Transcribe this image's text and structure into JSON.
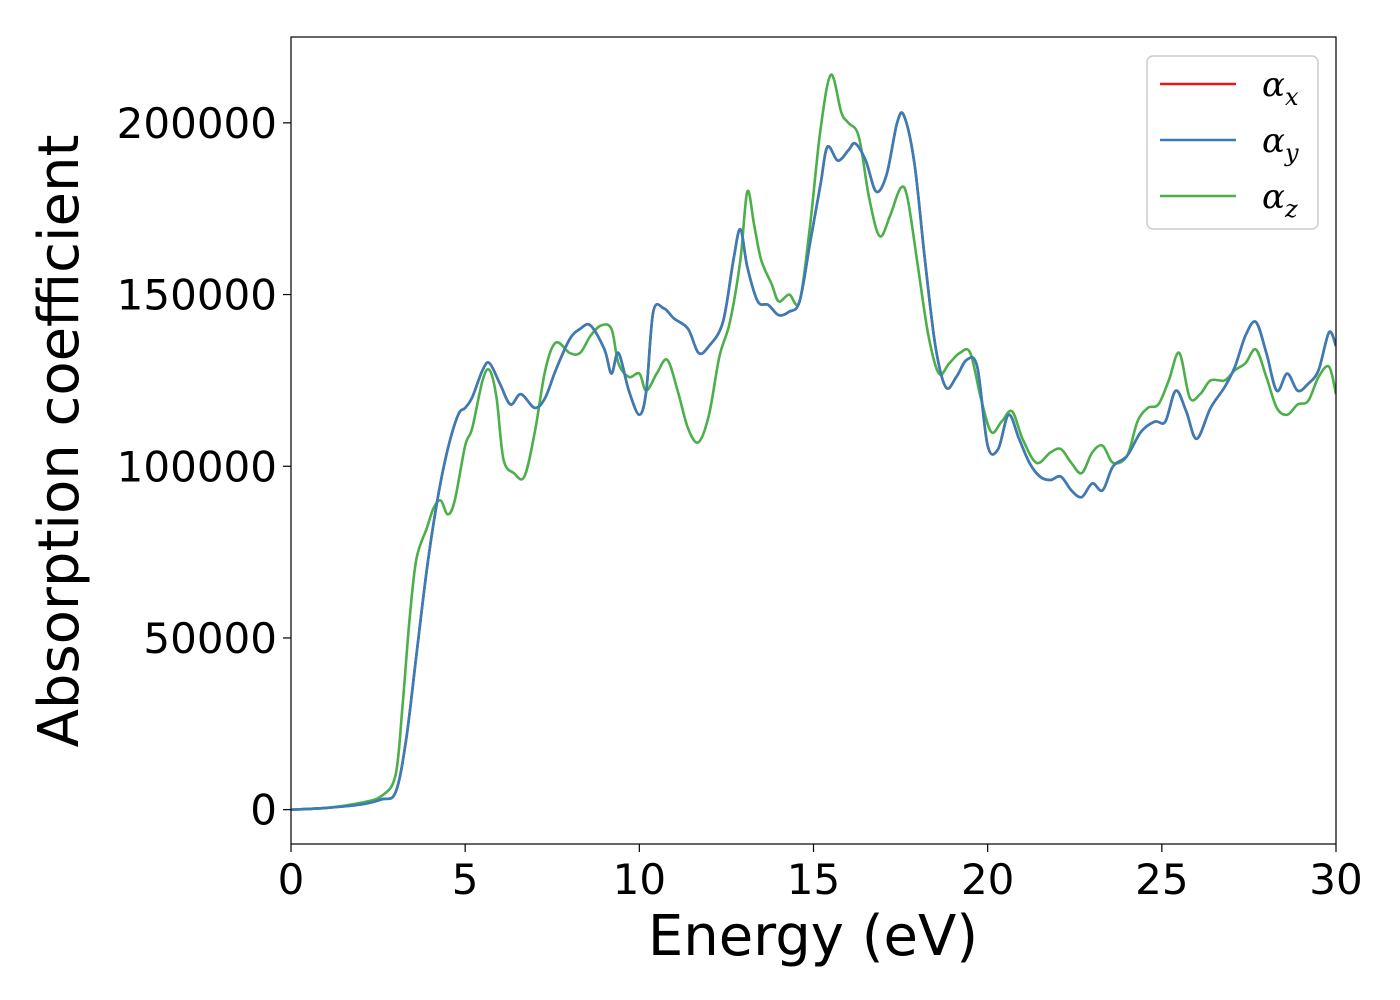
{
  "chart_data": {
    "type": "line",
    "xlabel": "Energy (eV)",
    "ylabel": "Absorption coefficient",
    "xlim": [
      0,
      30
    ],
    "ylim": [
      -10000,
      225000
    ],
    "xticks": [
      0,
      5,
      10,
      15,
      20,
      25,
      30
    ],
    "xtick_labels": [
      "0",
      "5",
      "10",
      "15",
      "20",
      "25",
      "30"
    ],
    "yticks": [
      0,
      50000,
      100000,
      150000,
      200000
    ],
    "ytick_labels": [
      "0",
      "50000",
      "100000",
      "150000",
      "200000"
    ],
    "grid": false,
    "legend_position": "top-right",
    "series": [
      {
        "name": "αx",
        "base": "α",
        "sub": "x",
        "color": "#e41a1c",
        "x": [
          0,
          1,
          2,
          2.6,
          3.0,
          3.3,
          3.6,
          3.9,
          4.2,
          4.5,
          4.8,
          5.0,
          5.2,
          5.5,
          5.7,
          6.0,
          6.3,
          6.6,
          7.0,
          7.3,
          7.6,
          8.0,
          8.3,
          8.6,
          9.0,
          9.2,
          9.4,
          9.7,
          10.0,
          10.2,
          10.4,
          10.7,
          11.0,
          11.4,
          11.7,
          12.0,
          12.4,
          12.7,
          12.9,
          13.1,
          13.4,
          13.7,
          14.0,
          14.3,
          14.6,
          14.9,
          15.2,
          15.4,
          15.7,
          16.0,
          16.2,
          16.5,
          16.8,
          17.1,
          17.4,
          17.6,
          17.9,
          18.2,
          18.5,
          18.8,
          19.1,
          19.4,
          19.7,
          20.0,
          20.3,
          20.6,
          20.9,
          21.2,
          21.5,
          21.8,
          22.1,
          22.4,
          22.7,
          23.0,
          23.3,
          23.6,
          24.0,
          24.4,
          24.8,
          25.1,
          25.4,
          25.7,
          26.0,
          26.4,
          26.8,
          27.1,
          27.4,
          27.7,
          28.0,
          28.3,
          28.6,
          28.9,
          29.2,
          29.5,
          29.8,
          30.0
        ],
        "y": [
          0,
          500,
          1500,
          3000,
          5000,
          20000,
          45000,
          70000,
          90000,
          105000,
          115000,
          117000,
          120000,
          128000,
          130000,
          124000,
          118000,
          121000,
          117000,
          120000,
          128000,
          137000,
          140000,
          141000,
          134000,
          127000,
          133000,
          122000,
          115000,
          122000,
          145000,
          146000,
          143000,
          140000,
          133000,
          135000,
          142000,
          160000,
          169000,
          158000,
          148000,
          147000,
          144000,
          145000,
          148000,
          165000,
          182000,
          193000,
          189000,
          192000,
          194000,
          189000,
          180000,
          185000,
          200000,
          202000,
          188000,
          160000,
          135000,
          123000,
          126000,
          131000,
          129000,
          106000,
          105000,
          115000,
          108000,
          101000,
          97000,
          96000,
          97000,
          93000,
          91000,
          95000,
          93000,
          100000,
          103000,
          110000,
          113000,
          113000,
          122000,
          116000,
          108000,
          117000,
          123000,
          129000,
          138000,
          142000,
          133000,
          122000,
          127000,
          122000,
          124000,
          128000,
          139000,
          135000
        ]
      },
      {
        "name": "αy",
        "base": "α",
        "sub": "y",
        "color": "#377eb8",
        "x": [
          0,
          1,
          2,
          2.6,
          3.0,
          3.3,
          3.6,
          3.9,
          4.2,
          4.5,
          4.8,
          5.0,
          5.2,
          5.5,
          5.7,
          6.0,
          6.3,
          6.6,
          7.0,
          7.3,
          7.6,
          8.0,
          8.3,
          8.6,
          9.0,
          9.2,
          9.4,
          9.7,
          10.0,
          10.2,
          10.4,
          10.7,
          11.0,
          11.4,
          11.7,
          12.0,
          12.4,
          12.7,
          12.9,
          13.1,
          13.4,
          13.7,
          14.0,
          14.3,
          14.6,
          14.9,
          15.2,
          15.4,
          15.7,
          16.0,
          16.2,
          16.5,
          16.8,
          17.1,
          17.4,
          17.6,
          17.9,
          18.2,
          18.5,
          18.8,
          19.1,
          19.4,
          19.7,
          20.0,
          20.3,
          20.6,
          20.9,
          21.2,
          21.5,
          21.8,
          22.1,
          22.4,
          22.7,
          23.0,
          23.3,
          23.6,
          24.0,
          24.4,
          24.8,
          25.1,
          25.4,
          25.7,
          26.0,
          26.4,
          26.8,
          27.1,
          27.4,
          27.7,
          28.0,
          28.3,
          28.6,
          28.9,
          29.2,
          29.5,
          29.8,
          30.0
        ],
        "y": [
          0,
          500,
          1500,
          3000,
          5000,
          20000,
          45000,
          70000,
          90000,
          105000,
          115000,
          117000,
          120000,
          128000,
          130000,
          124000,
          118000,
          121000,
          117000,
          120000,
          128000,
          137000,
          140000,
          141000,
          134000,
          127000,
          133000,
          122000,
          115000,
          122000,
          145000,
          146000,
          143000,
          140000,
          133000,
          135000,
          142000,
          160000,
          169000,
          158000,
          148000,
          147000,
          144000,
          145000,
          148000,
          165000,
          182000,
          193000,
          189000,
          192000,
          194000,
          189000,
          180000,
          185000,
          200000,
          202000,
          188000,
          160000,
          135000,
          123000,
          126000,
          131000,
          129000,
          106000,
          105000,
          115000,
          108000,
          101000,
          97000,
          96000,
          97000,
          93000,
          91000,
          95000,
          93000,
          100000,
          103000,
          110000,
          113000,
          113000,
          122000,
          116000,
          108000,
          117000,
          123000,
          129000,
          138000,
          142000,
          133000,
          122000,
          127000,
          122000,
          124000,
          128000,
          139000,
          135000
        ]
      },
      {
        "name": "αz",
        "base": "α",
        "sub": "z",
        "color": "#4daf4a",
        "x": [
          0,
          1,
          2,
          2.6,
          3.0,
          3.2,
          3.4,
          3.6,
          3.9,
          4.1,
          4.3,
          4.5,
          4.7,
          5.0,
          5.2,
          5.5,
          5.7,
          5.9,
          6.1,
          6.4,
          6.7,
          7.0,
          7.3,
          7.6,
          8.0,
          8.3,
          8.6,
          8.9,
          9.2,
          9.4,
          9.7,
          10.0,
          10.2,
          10.5,
          10.8,
          11.1,
          11.4,
          11.7,
          12.0,
          12.3,
          12.6,
          12.9,
          13.1,
          13.3,
          13.5,
          13.8,
          14.0,
          14.3,
          14.6,
          14.9,
          15.2,
          15.5,
          15.8,
          16.0,
          16.3,
          16.6,
          16.9,
          17.2,
          17.5,
          17.7,
          18.0,
          18.3,
          18.6,
          18.9,
          19.2,
          19.5,
          19.8,
          20.1,
          20.4,
          20.7,
          21.0,
          21.4,
          21.8,
          22.1,
          22.4,
          22.7,
          23.0,
          23.3,
          23.6,
          24.0,
          24.3,
          24.6,
          24.9,
          25.2,
          25.5,
          25.8,
          26.1,
          26.4,
          26.8,
          27.1,
          27.4,
          27.7,
          28.0,
          28.3,
          28.6,
          28.9,
          29.2,
          29.5,
          29.8,
          30.0
        ],
        "y": [
          0,
          500,
          2000,
          4000,
          10000,
          30000,
          55000,
          73000,
          82000,
          88000,
          90000,
          86000,
          90000,
          106000,
          111000,
          125000,
          128000,
          120000,
          102000,
          98000,
          97000,
          110000,
          128000,
          136000,
          133000,
          133000,
          138000,
          141000,
          140000,
          130000,
          126000,
          127000,
          122000,
          127000,
          131000,
          122000,
          111000,
          107000,
          115000,
          132000,
          142000,
          160000,
          180000,
          170000,
          160000,
          153000,
          148000,
          150000,
          148000,
          170000,
          198000,
          214000,
          203000,
          200000,
          196000,
          178000,
          167000,
          173000,
          181000,
          178000,
          158000,
          138000,
          127000,
          130000,
          133000,
          133000,
          120000,
          110000,
          113000,
          116000,
          108000,
          101000,
          104000,
          105000,
          101000,
          98000,
          104000,
          106000,
          101000,
          103000,
          113000,
          117000,
          118000,
          125000,
          133000,
          120000,
          121000,
          125000,
          125000,
          128000,
          130000,
          134000,
          126000,
          117000,
          115000,
          118000,
          119000,
          126000,
          129000,
          121000
        ]
      }
    ]
  }
}
